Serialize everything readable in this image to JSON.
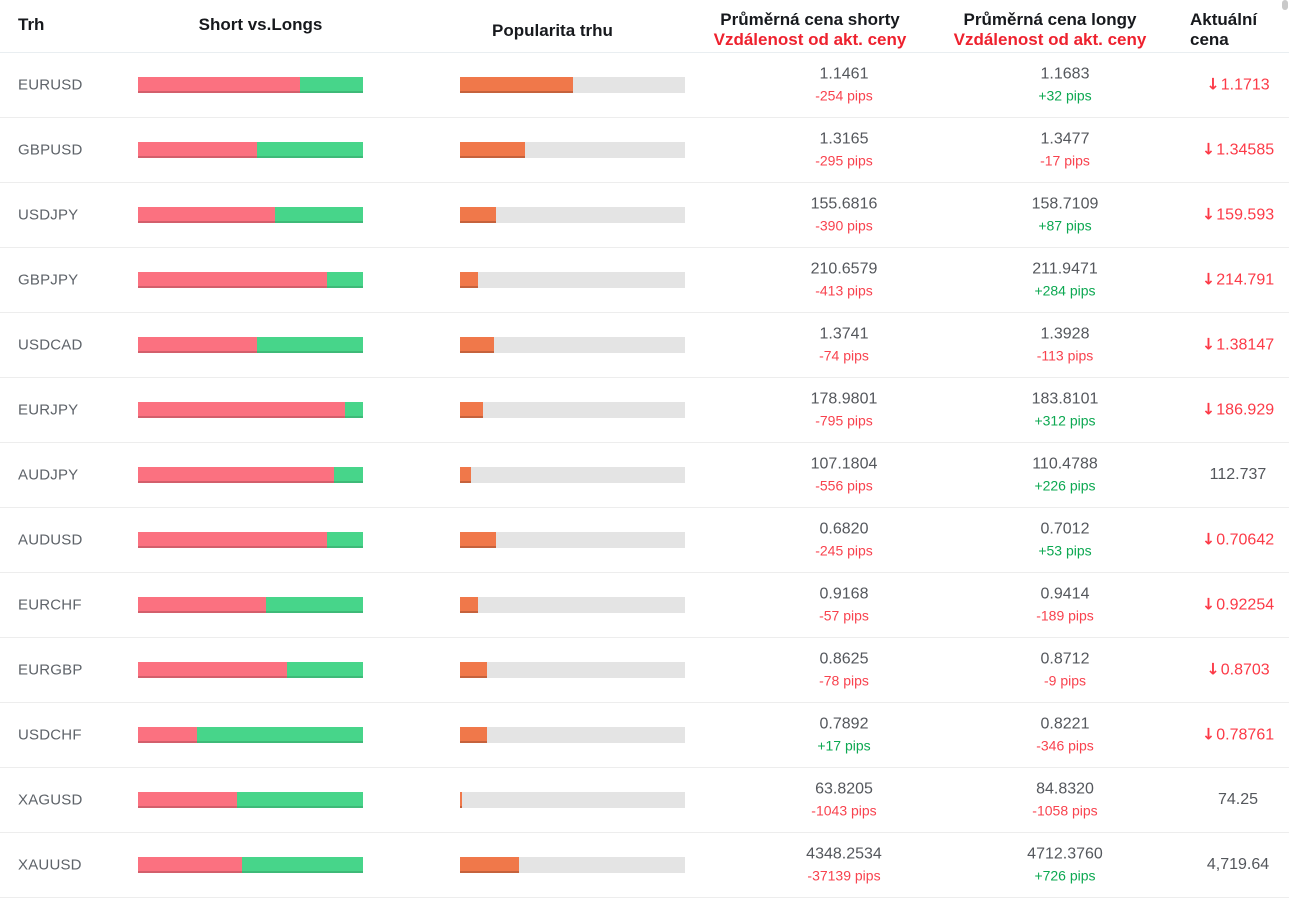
{
  "table": {
    "columns": {
      "market": "Trh",
      "short_vs_longs": "Short vs.Longs",
      "popularity": "Popularita trhu",
      "avg_short_line1": "Průměrná cena shorty",
      "avg_short_line2": "Vzdálenost od akt. ceny",
      "avg_long_line1": "Průměrná cena longy",
      "avg_long_line2": "Vzdálenost od akt. ceny",
      "current_line1": "Aktuální",
      "current_line2": "cena"
    },
    "rows": [
      {
        "market": "EURUSD",
        "short_pct": 72,
        "long_pct": 28,
        "popularity_pct": 50,
        "avg_short_price": "1.1461",
        "avg_short_distance": "-254 pips",
        "avg_long_price": "1.1683",
        "avg_long_distance": "+32 pips",
        "current_price": "1.1713",
        "direction": "down"
      },
      {
        "market": "GBPUSD",
        "short_pct": 53,
        "long_pct": 47,
        "popularity_pct": 29,
        "avg_short_price": "1.3165",
        "avg_short_distance": "-295 pips",
        "avg_long_price": "1.3477",
        "avg_long_distance": "-17 pips",
        "current_price": "1.34585",
        "direction": "down"
      },
      {
        "market": "USDJPY",
        "short_pct": 61,
        "long_pct": 39,
        "popularity_pct": 16,
        "avg_short_price": "155.6816",
        "avg_short_distance": "-390 pips",
        "avg_long_price": "158.7109",
        "avg_long_distance": "+87 pips",
        "current_price": "159.593",
        "direction": "down"
      },
      {
        "market": "GBPJPY",
        "short_pct": 84,
        "long_pct": 16,
        "popularity_pct": 8,
        "avg_short_price": "210.6579",
        "avg_short_distance": "-413 pips",
        "avg_long_price": "211.9471",
        "avg_long_distance": "+284 pips",
        "current_price": "214.791",
        "direction": "down"
      },
      {
        "market": "USDCAD",
        "short_pct": 53,
        "long_pct": 47,
        "popularity_pct": 15,
        "avg_short_price": "1.3741",
        "avg_short_distance": "-74 pips",
        "avg_long_price": "1.3928",
        "avg_long_distance": "-113 pips",
        "current_price": "1.38147",
        "direction": "down"
      },
      {
        "market": "EURJPY",
        "short_pct": 92,
        "long_pct": 8,
        "popularity_pct": 10,
        "avg_short_price": "178.9801",
        "avg_short_distance": "-795 pips",
        "avg_long_price": "183.8101",
        "avg_long_distance": "+312 pips",
        "current_price": "186.929",
        "direction": "down"
      },
      {
        "market": "AUDJPY",
        "short_pct": 87,
        "long_pct": 13,
        "popularity_pct": 5,
        "avg_short_price": "107.1804",
        "avg_short_distance": "-556 pips",
        "avg_long_price": "110.4788",
        "avg_long_distance": "+226 pips",
        "current_price": "112.737",
        "direction": "none"
      },
      {
        "market": "AUDUSD",
        "short_pct": 84,
        "long_pct": 16,
        "popularity_pct": 16,
        "avg_short_price": "0.6820",
        "avg_short_distance": "-245 pips",
        "avg_long_price": "0.7012",
        "avg_long_distance": "+53 pips",
        "current_price": "0.70642",
        "direction": "down"
      },
      {
        "market": "EURCHF",
        "short_pct": 57,
        "long_pct": 43,
        "popularity_pct": 8,
        "avg_short_price": "0.9168",
        "avg_short_distance": "-57 pips",
        "avg_long_price": "0.9414",
        "avg_long_distance": "-189 pips",
        "current_price": "0.92254",
        "direction": "down"
      },
      {
        "market": "EURGBP",
        "short_pct": 66,
        "long_pct": 34,
        "popularity_pct": 12,
        "avg_short_price": "0.8625",
        "avg_short_distance": "-78 pips",
        "avg_long_price": "0.8712",
        "avg_long_distance": "-9 pips",
        "current_price": "0.8703",
        "direction": "down"
      },
      {
        "market": "USDCHF",
        "short_pct": 26,
        "long_pct": 74,
        "popularity_pct": 12,
        "avg_short_price": "0.7892",
        "avg_short_distance": "+17 pips",
        "avg_long_price": "0.8221",
        "avg_long_distance": "-346 pips",
        "current_price": "0.78761",
        "direction": "down"
      },
      {
        "market": "XAGUSD",
        "short_pct": 44,
        "long_pct": 56,
        "popularity_pct": 1,
        "avg_short_price": "63.8205",
        "avg_short_distance": "-1043 pips",
        "avg_long_price": "84.8320",
        "avg_long_distance": "-1058 pips",
        "current_price": "74.25",
        "direction": "none"
      },
      {
        "market": "XAUUSD",
        "short_pct": 46,
        "long_pct": 54,
        "popularity_pct": 26,
        "avg_short_price": "4348.2534",
        "avg_short_distance": "-37139 pips",
        "avg_long_price": "4712.3760",
        "avg_long_distance": "+726 pips",
        "current_price": "4,719.64",
        "direction": "none"
      }
    ]
  },
  "icons": {
    "price_down_arrow": "↓"
  },
  "colors": {
    "short_bar": "#fb7180",
    "long_bar": "#47d58a",
    "popularity_fill": "#f0784a",
    "popularity_track": "#e4e4e4",
    "pips_negative": "#f8424e",
    "pips_positive": "#0ca851",
    "header_red": "#ee212e",
    "current_price_down": "#fc3a47"
  }
}
